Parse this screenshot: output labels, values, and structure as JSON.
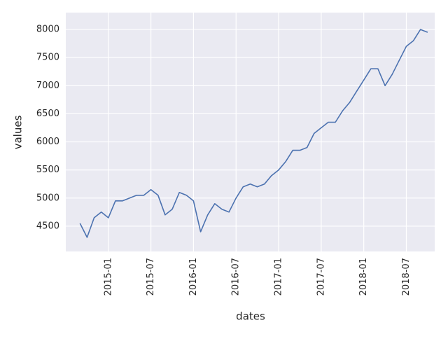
{
  "chart_data": {
    "type": "line",
    "x_label": "dates",
    "y_label": "values",
    "x": [
      "2014-09",
      "2014-10",
      "2014-11",
      "2014-12",
      "2015-01",
      "2015-02",
      "2015-03",
      "2015-04",
      "2015-05",
      "2015-06",
      "2015-07",
      "2015-08",
      "2015-09",
      "2015-10",
      "2015-11",
      "2015-12",
      "2016-01",
      "2016-02",
      "2016-03",
      "2016-04",
      "2016-05",
      "2016-06",
      "2016-07",
      "2016-08",
      "2016-09",
      "2016-10",
      "2016-11",
      "2016-12",
      "2017-01",
      "2017-02",
      "2017-03",
      "2017-04",
      "2017-05",
      "2017-06",
      "2017-07",
      "2017-08",
      "2017-09",
      "2017-10",
      "2017-11",
      "2017-12",
      "2018-01",
      "2018-02",
      "2018-03",
      "2018-04",
      "2018-05",
      "2018-06",
      "2018-07",
      "2018-08",
      "2018-09",
      "2018-10"
    ],
    "series": [
      {
        "name": "values",
        "color": "#4c72b0",
        "values": [
          4550,
          4300,
          4650,
          4750,
          4650,
          4950,
          4950,
          5000,
          5050,
          5050,
          5150,
          5050,
          4700,
          4800,
          5100,
          5050,
          4950,
          4400,
          4700,
          4900,
          4800,
          4750,
          5000,
          5200,
          5250,
          5200,
          5250,
          5400,
          5500,
          5650,
          5850,
          5850,
          5900,
          6150,
          6250,
          6350,
          6350,
          6550,
          6700,
          6900,
          7100,
          7300,
          7300,
          7000,
          7200,
          7450,
          7700,
          7800,
          8000,
          7950
        ]
      }
    ],
    "xlim": [
      "2014-07",
      "2018-11"
    ],
    "xticks": [
      "2015-01",
      "2015-07",
      "2016-01",
      "2016-07",
      "2017-01",
      "2017-07",
      "2018-01",
      "2018-07"
    ],
    "ylim": [
      4050,
      8300
    ],
    "yticks": [
      4500,
      5000,
      5500,
      6000,
      6500,
      7000,
      7500,
      8000
    ],
    "grid": true
  }
}
